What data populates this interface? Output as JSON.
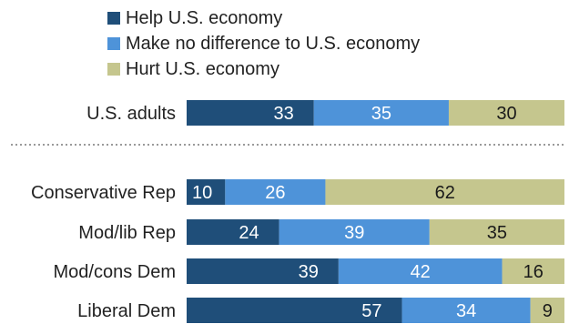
{
  "legend": [
    {
      "label": "Help U.S. economy",
      "color": "#1f4e79"
    },
    {
      "label": "Make no difference to U.S. economy",
      "color": "#4e93d9"
    },
    {
      "label": "Hurt U.S. economy",
      "color": "#c5c68e"
    }
  ],
  "chart_data": {
    "type": "bar",
    "orientation": "horizontal",
    "stacked": true,
    "categories": [
      "U.S. adults",
      "Conservative Rep",
      "Mod/lib Rep",
      "Mod/cons Dem",
      "Liberal Dem"
    ],
    "series": [
      {
        "name": "Help U.S. economy",
        "color": "#1f4e79",
        "values": [
          33,
          10,
          24,
          39,
          57
        ]
      },
      {
        "name": "Make no difference to U.S. economy",
        "color": "#4e93d9",
        "values": [
          35,
          26,
          39,
          42,
          34
        ]
      },
      {
        "name": "Hurt U.S. economy",
        "color": "#c5c68e",
        "values": [
          30,
          62,
          35,
          16,
          9
        ]
      }
    ],
    "separator_after_index": 0,
    "legend_position": "top"
  }
}
